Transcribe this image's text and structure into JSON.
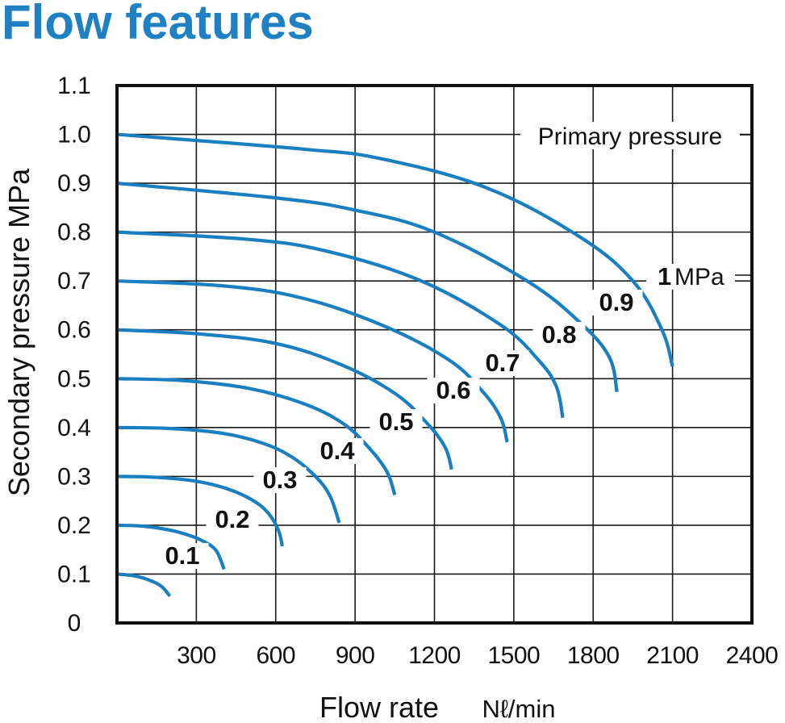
{
  "title": "Flow features",
  "chart_data": {
    "type": "line",
    "title": "Flow features",
    "xlabel": "Flow rate",
    "xlabel_unit": "Nℓ/min",
    "ylabel": "Secondary pressure  MPa",
    "xlim": [
      0,
      2400
    ],
    "ylim": [
      0,
      1.1
    ],
    "x_ticks": [
      300,
      600,
      900,
      1200,
      1500,
      1800,
      2100,
      2400
    ],
    "x_tick_labels": [
      "300",
      "600",
      "900",
      "1200",
      "1500",
      "1800",
      "2100",
      "2400"
    ],
    "y_ticks": [
      0,
      0.1,
      0.2,
      0.3,
      0.4,
      0.5,
      0.6,
      0.7,
      0.8,
      0.9,
      1.0,
      1.1
    ],
    "y_tick_labels": [
      "0",
      "0.1",
      "0.2",
      "0.3",
      "0.4",
      "0.5",
      "0.6",
      "0.7",
      "0.8",
      "0.9",
      "1.0",
      "1.1"
    ],
    "grid": true,
    "legend_title": "Primary pressure",
    "line_color": "#1a7fc1",
    "series": [
      {
        "name": "0.1",
        "x": [
          0,
          70,
          130,
          170,
          200
        ],
        "y": [
          0.1,
          0.096,
          0.086,
          0.074,
          0.055
        ]
      },
      {
        "name": "0.2",
        "x": [
          0,
          100,
          200,
          280,
          330,
          375,
          405
        ],
        "y": [
          0.2,
          0.198,
          0.19,
          0.178,
          0.166,
          0.148,
          0.11
        ]
      },
      {
        "name": "0.3",
        "x": [
          0,
          150,
          300,
          420,
          510,
          570,
          610,
          625
        ],
        "y": [
          0.3,
          0.298,
          0.29,
          0.274,
          0.252,
          0.226,
          0.19,
          0.157
        ]
      },
      {
        "name": "0.4",
        "x": [
          0,
          200,
          400,
          550,
          660,
          750,
          805,
          840
        ],
        "y": [
          0.4,
          0.398,
          0.388,
          0.368,
          0.34,
          0.3,
          0.26,
          0.205
        ]
      },
      {
        "name": "0.5",
        "x": [
          0,
          250,
          500,
          700,
          850,
          950,
          1020,
          1050
        ],
        "y": [
          0.5,
          0.496,
          0.48,
          0.45,
          0.41,
          0.36,
          0.31,
          0.262
        ]
      },
      {
        "name": "0.6",
        "x": [
          0,
          300,
          600,
          850,
          1050,
          1170,
          1240,
          1265
        ],
        "y": [
          0.6,
          0.592,
          0.572,
          0.528,
          0.47,
          0.41,
          0.36,
          0.314
        ]
      },
      {
        "name": "0.7",
        "x": [
          0,
          400,
          700,
          1000,
          1250,
          1380,
          1450,
          1475
        ],
        "y": [
          0.7,
          0.69,
          0.665,
          0.61,
          0.54,
          0.475,
          0.42,
          0.37
        ]
      },
      {
        "name": "0.8",
        "x": [
          0,
          500,
          800,
          1150,
          1450,
          1590,
          1660,
          1685
        ],
        "y": [
          0.8,
          0.785,
          0.76,
          0.7,
          0.61,
          0.54,
          0.485,
          0.42
        ]
      },
      {
        "name": "0.9",
        "x": [
          0,
          600,
          900,
          1200,
          1550,
          1750,
          1860,
          1890
        ],
        "y": [
          0.9,
          0.87,
          0.845,
          0.8,
          0.7,
          0.615,
          0.545,
          0.473
        ]
      },
      {
        "name": "1",
        "name_unit": "MPa",
        "x": [
          0,
          700,
          1000,
          1400,
          1750,
          1950,
          2060,
          2100
        ],
        "y": [
          1.0,
          0.97,
          0.95,
          0.89,
          0.79,
          0.7,
          0.6,
          0.525
        ]
      }
    ]
  }
}
